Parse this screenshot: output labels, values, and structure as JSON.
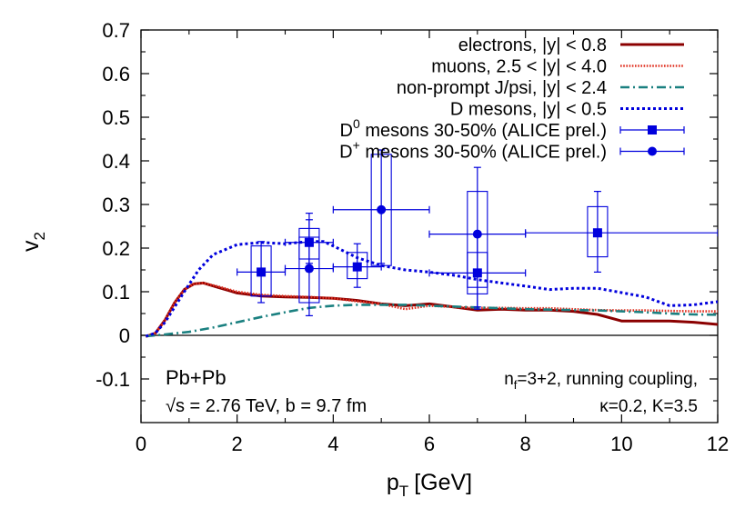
{
  "chart_data": {
    "type": "line",
    "title": "",
    "xlabel": "p",
    "xlabel_sub": "T",
    "xlabel_unit": "[GeV]",
    "ylabel": "v",
    "ylabel_sub": "2",
    "xlim": [
      0,
      12
    ],
    "ylim": [
      -0.2,
      0.7
    ],
    "xticks": [
      "0",
      "2",
      "4",
      "6",
      "8",
      "10",
      "12"
    ],
    "yticks": [
      "-0.1",
      "0",
      "0.1",
      "0.2",
      "0.3",
      "0.4",
      "0.5",
      "0.6",
      "0.7"
    ],
    "grid": false,
    "legend_position": "top-right",
    "series": [
      {
        "name": "electrons, |y| < 0.8",
        "legend_pre": "electrons, ",
        "legend_abs": "y",
        "legend_post": " < 0.8",
        "color": "#8b0000",
        "style": "solid",
        "points": [
          [
            0.1,
            -0.003
          ],
          [
            0.3,
            0.005
          ],
          [
            0.5,
            0.035
          ],
          [
            0.7,
            0.075
          ],
          [
            0.9,
            0.105
          ],
          [
            1.1,
            0.118
          ],
          [
            1.3,
            0.12
          ],
          [
            1.6,
            0.11
          ],
          [
            2.0,
            0.097
          ],
          [
            2.5,
            0.09
          ],
          [
            3.0,
            0.088
          ],
          [
            3.5,
            0.087
          ],
          [
            4.0,
            0.085
          ],
          [
            4.5,
            0.08
          ],
          [
            5.0,
            0.072
          ],
          [
            5.5,
            0.068
          ],
          [
            6.0,
            0.072
          ],
          [
            6.5,
            0.065
          ],
          [
            7.0,
            0.058
          ],
          [
            7.5,
            0.06
          ],
          [
            8.0,
            0.058
          ],
          [
            8.5,
            0.058
          ],
          [
            9.0,
            0.055
          ],
          [
            9.5,
            0.048
          ],
          [
            10.0,
            0.033
          ],
          [
            10.5,
            0.033
          ],
          [
            11.0,
            0.033
          ],
          [
            11.5,
            0.03
          ],
          [
            12.0,
            0.025
          ]
        ]
      },
      {
        "name": "muons, 2.5 < |y| < 4.0",
        "legend_pre": "muons, 2.5 < ",
        "legend_abs": "y",
        "legend_post": " < 4.0",
        "color": "#e03020",
        "style": "dotted",
        "points": [
          [
            0.1,
            -0.003
          ],
          [
            0.3,
            0.005
          ],
          [
            0.5,
            0.035
          ],
          [
            0.7,
            0.075
          ],
          [
            0.9,
            0.105
          ],
          [
            1.1,
            0.118
          ],
          [
            1.3,
            0.12
          ],
          [
            1.6,
            0.112
          ],
          [
            2.0,
            0.1
          ],
          [
            2.5,
            0.093
          ],
          [
            3.0,
            0.09
          ],
          [
            3.5,
            0.088
          ],
          [
            4.0,
            0.085
          ],
          [
            4.5,
            0.078
          ],
          [
            5.0,
            0.072
          ],
          [
            5.5,
            0.06
          ],
          [
            6.0,
            0.068
          ],
          [
            6.5,
            0.065
          ],
          [
            7.0,
            0.063
          ],
          [
            7.5,
            0.063
          ],
          [
            8.0,
            0.062
          ],
          [
            8.5,
            0.062
          ],
          [
            9.0,
            0.06
          ],
          [
            9.5,
            0.058
          ],
          [
            10.0,
            0.057
          ],
          [
            10.5,
            0.057
          ],
          [
            11.0,
            0.056
          ],
          [
            11.5,
            0.055
          ],
          [
            12.0,
            0.055
          ]
        ]
      },
      {
        "name": "non-prompt J/psi, |y| < 2.4",
        "legend_pre": "non-prompt J/psi, ",
        "legend_abs": "y",
        "legend_post": " < 2.4",
        "color": "#1a8080",
        "style": "dashdot",
        "points": [
          [
            0.1,
            -0.002
          ],
          [
            0.5,
            0.002
          ],
          [
            1.0,
            0.008
          ],
          [
            1.5,
            0.018
          ],
          [
            2.0,
            0.03
          ],
          [
            2.5,
            0.042
          ],
          [
            3.0,
            0.053
          ],
          [
            3.5,
            0.063
          ],
          [
            4.0,
            0.068
          ],
          [
            4.5,
            0.07
          ],
          [
            5.0,
            0.07
          ],
          [
            5.5,
            0.07
          ],
          [
            6.0,
            0.068
          ],
          [
            6.5,
            0.066
          ],
          [
            7.0,
            0.064
          ],
          [
            7.5,
            0.062
          ],
          [
            8.0,
            0.06
          ],
          [
            8.5,
            0.059
          ],
          [
            9.0,
            0.058
          ],
          [
            9.5,
            0.057
          ],
          [
            10.0,
            0.055
          ],
          [
            10.5,
            0.053
          ],
          [
            11.0,
            0.05
          ],
          [
            11.5,
            0.048
          ],
          [
            12.0,
            0.047
          ]
        ]
      },
      {
        "name": "D mesons, |y| < 0.5",
        "legend_pre": "D mesons, ",
        "legend_abs": "y",
        "legend_post": " < 0.5",
        "color": "#0000dd",
        "style": "dotted",
        "points": [
          [
            0.1,
            -0.002
          ],
          [
            0.3,
            0.005
          ],
          [
            0.5,
            0.03
          ],
          [
            0.7,
            0.065
          ],
          [
            0.9,
            0.1
          ],
          [
            1.2,
            0.15
          ],
          [
            1.5,
            0.185
          ],
          [
            2.0,
            0.208
          ],
          [
            2.5,
            0.213
          ],
          [
            3.0,
            0.21
          ],
          [
            3.5,
            0.215
          ],
          [
            3.8,
            0.215
          ],
          [
            4.0,
            0.205
          ],
          [
            4.5,
            0.178
          ],
          [
            5.0,
            0.16
          ],
          [
            5.5,
            0.15
          ],
          [
            6.0,
            0.145
          ],
          [
            6.5,
            0.138
          ],
          [
            7.0,
            0.128
          ],
          [
            7.5,
            0.12
          ],
          [
            8.0,
            0.113
          ],
          [
            8.5,
            0.105
          ],
          [
            9.0,
            0.108
          ],
          [
            9.5,
            0.108
          ],
          [
            10.0,
            0.098
          ],
          [
            10.5,
            0.088
          ],
          [
            11.0,
            0.068
          ],
          [
            11.5,
            0.07
          ],
          [
            12.0,
            0.077
          ]
        ]
      }
    ],
    "data_series": [
      {
        "name": "D0 mesons 30-50% (ALICE prel.)",
        "legend_main": "D",
        "legend_sup": "0",
        "legend_post": " mesons 30-50% (ALICE prel.)",
        "marker": "square",
        "color": "#0000dd",
        "points": [
          {
            "x": 2.5,
            "y": 0.145,
            "xlo": 2.0,
            "xhi": 3.0,
            "ylo": 0.075,
            "yhi": 0.215,
            "syslo": 0.09,
            "syshi": 0.205
          },
          {
            "x": 3.5,
            "y": 0.213,
            "xlo": 3.0,
            "xhi": 4.0,
            "ylo": 0.165,
            "yhi": 0.265,
            "syslo": 0.175,
            "syshi": 0.245
          },
          {
            "x": 4.5,
            "y": 0.157,
            "xlo": 4.0,
            "xhi": 5.0,
            "ylo": 0.11,
            "yhi": 0.21,
            "syslo": 0.13,
            "syshi": 0.19
          },
          {
            "x": 7.0,
            "y": 0.143,
            "xlo": 6.0,
            "xhi": 8.0,
            "ylo": 0.06,
            "yhi": 0.23,
            "syslo": 0.095,
            "syshi": 0.19
          },
          {
            "x": 9.5,
            "y": 0.235,
            "xlo": 8.0,
            "xhi": 12.0,
            "ylo": 0.145,
            "yhi": 0.33,
            "syslo": 0.18,
            "syshi": 0.295
          }
        ]
      },
      {
        "name": "D+ mesons 30-50% (ALICE prel.)",
        "legend_main": "D",
        "legend_sup": "+",
        "legend_post": " mesons 30-50% (ALICE prel.)",
        "marker": "circle",
        "color": "#0000dd",
        "points": [
          {
            "x": 3.5,
            "y": 0.153,
            "xlo": 3.0,
            "xhi": 4.0,
            "ylo": 0.045,
            "yhi": 0.28,
            "syslo": 0.075,
            "syshi": 0.225
          },
          {
            "x": 5.0,
            "y": 0.288,
            "xlo": 4.0,
            "xhi": 6.0,
            "ylo": 0.165,
            "yhi": 0.425,
            "syslo": 0.16,
            "syshi": 0.415
          },
          {
            "x": 7.0,
            "y": 0.232,
            "xlo": 6.0,
            "xhi": 8.0,
            "ylo": 0.065,
            "yhi": 0.385,
            "syslo": 0.11,
            "syshi": 0.33
          }
        ]
      }
    ],
    "annotations": {
      "system": "Pb+Pb",
      "sqrt_symbol": "√",
      "energy": "s = 2.76 TeV, b = 9.7 fm",
      "model_main": "n",
      "model_sub": "f",
      "model_post": "=3+2, running coupling,",
      "params": "κ=0.2, K=3.5"
    }
  }
}
